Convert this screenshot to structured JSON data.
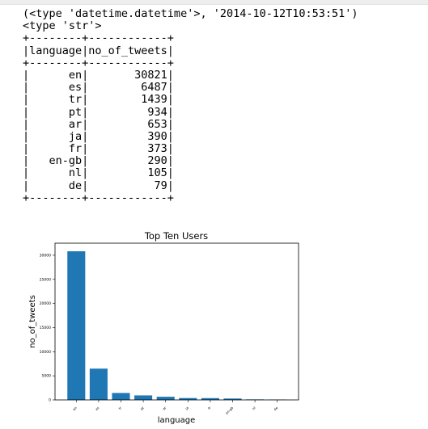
{
  "output": {
    "type_line_1": "(<type 'datetime.datetime'>, '2014-10-12T10:53:51')",
    "type_line_2": "<type 'str'>"
  },
  "table": {
    "columns": [
      "language",
      "no_of_tweets"
    ],
    "rows": [
      {
        "language": "en",
        "no_of_tweets": "30821"
      },
      {
        "language": "es",
        "no_of_tweets": "6487"
      },
      {
        "language": "tr",
        "no_of_tweets": "1439"
      },
      {
        "language": "pt",
        "no_of_tweets": "934"
      },
      {
        "language": "ar",
        "no_of_tweets": "653"
      },
      {
        "language": "ja",
        "no_of_tweets": "390"
      },
      {
        "language": "fr",
        "no_of_tweets": "373"
      },
      {
        "language": "en-gb",
        "no_of_tweets": "290"
      },
      {
        "language": "nl",
        "no_of_tweets": "105"
      },
      {
        "language": "de",
        "no_of_tweets": "79"
      }
    ]
  },
  "chart_data": {
    "type": "bar",
    "title": "Top Ten Users",
    "xlabel": "language",
    "ylabel": "no_of_tweets",
    "categories": [
      "en",
      "es",
      "tr",
      "pt",
      "ar",
      "ja",
      "fr",
      "en-gb",
      "nl",
      "de"
    ],
    "values": [
      30821,
      6487,
      1439,
      934,
      653,
      390,
      373,
      290,
      105,
      79
    ],
    "ylim": [
      0,
      32500
    ],
    "yticks": [
      0,
      5000,
      10000,
      15000,
      20000,
      25000,
      30000
    ],
    "ytick_labels": [
      "0",
      "5000",
      "10000",
      "15000",
      "20000",
      "25000",
      "30000"
    ],
    "grid": false,
    "bar_color": "#1f77b4"
  }
}
